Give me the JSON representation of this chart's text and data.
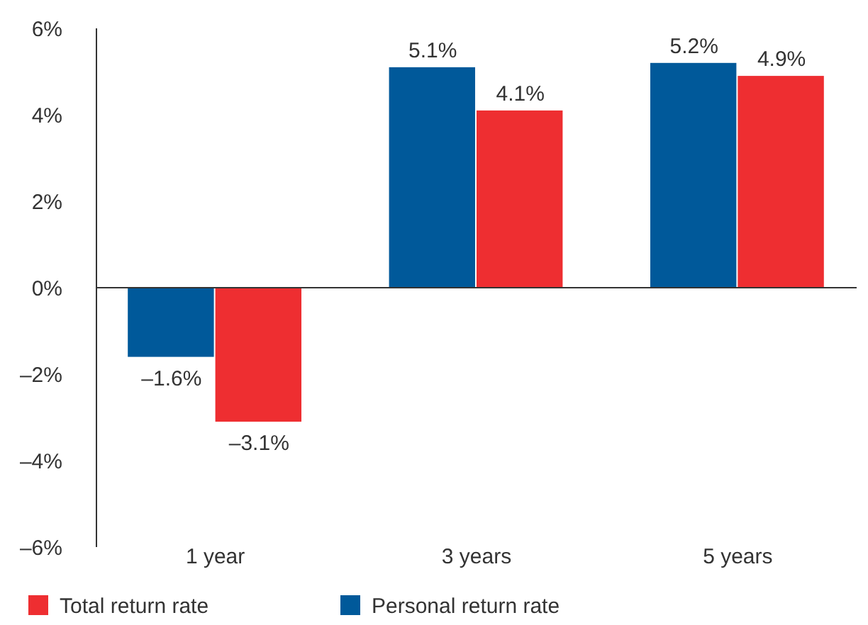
{
  "chart_data": {
    "type": "bar",
    "categories": [
      "1 year",
      "3 years",
      "5 years"
    ],
    "series": [
      {
        "name": "Personal return rate",
        "color": "#00599a",
        "values": [
          -1.6,
          5.1,
          5.2
        ],
        "value_labels": [
          "–1.6%",
          "5.1%",
          "5.2%"
        ]
      },
      {
        "name": "Total return rate",
        "color": "#ee2e31",
        "values": [
          -3.1,
          4.1,
          4.9
        ],
        "value_labels": [
          "–3.1%",
          "4.1%",
          "4.9%"
        ]
      }
    ],
    "ylim": [
      -6,
      6
    ],
    "yticks": [
      {
        "value": -6,
        "label": "–6%"
      },
      {
        "value": -4,
        "label": "–4%"
      },
      {
        "value": -2,
        "label": "–2%"
      },
      {
        "value": 0,
        "label": "0%"
      },
      {
        "value": 2,
        "label": "2%"
      },
      {
        "value": 4,
        "label": "4%"
      },
      {
        "value": 6,
        "label": "6%"
      }
    ],
    "legend": "bottom"
  }
}
